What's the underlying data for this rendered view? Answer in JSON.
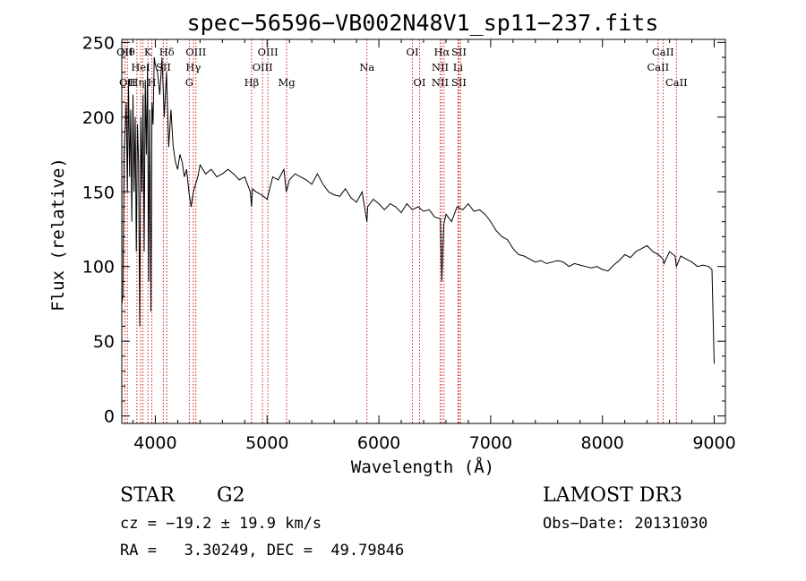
{
  "chart_data": {
    "type": "line",
    "title": "spec−56596−VB002N48V1_sp11−237.fits",
    "xlabel": "Wavelength (Å)",
    "ylabel": "Flux (relative)",
    "xlim": [
      3700,
      9100
    ],
    "ylim": [
      -5,
      252
    ],
    "xticks": [
      4000,
      5000,
      6000,
      7000,
      8000,
      9000
    ],
    "yticks": [
      0,
      50,
      100,
      150,
      200,
      250
    ],
    "spectrum": {
      "x": [
        3700,
        3710,
        3720,
        3730,
        3740,
        3750,
        3760,
        3770,
        3780,
        3790,
        3800,
        3810,
        3820,
        3830,
        3840,
        3850,
        3860,
        3870,
        3880,
        3890,
        3900,
        3910,
        3920,
        3930,
        3940,
        3950,
        3960,
        3970,
        3980,
        3990,
        4000,
        4020,
        4040,
        4060,
        4080,
        4100,
        4120,
        4140,
        4160,
        4180,
        4200,
        4220,
        4240,
        4260,
        4280,
        4300,
        4320,
        4340,
        4360,
        4380,
        4400,
        4450,
        4500,
        4550,
        4600,
        4650,
        4700,
        4750,
        4800,
        4850,
        4861,
        4870,
        4900,
        4950,
        5000,
        5050,
        5100,
        5150,
        5172,
        5200,
        5250,
        5300,
        5350,
        5400,
        5450,
        5500,
        5550,
        5600,
        5650,
        5700,
        5750,
        5800,
        5850,
        5893,
        5900,
        5950,
        6000,
        6050,
        6100,
        6150,
        6200,
        6250,
        6300,
        6350,
        6400,
        6450,
        6500,
        6550,
        6563,
        6580,
        6600,
        6650,
        6700,
        6750,
        6800,
        6850,
        6900,
        6950,
        7000,
        7050,
        7100,
        7150,
        7200,
        7250,
        7300,
        7350,
        7400,
        7450,
        7500,
        7550,
        7600,
        7650,
        7700,
        7750,
        7800,
        7850,
        7900,
        7950,
        8000,
        8050,
        8100,
        8150,
        8200,
        8250,
        8300,
        8350,
        8400,
        8450,
        8500,
        8542,
        8550,
        8600,
        8650,
        8662,
        8700,
        8750,
        8800,
        8850,
        8900,
        8950,
        8980,
        9000
      ],
      "y": [
        75,
        80,
        175,
        190,
        210,
        150,
        225,
        160,
        205,
        130,
        215,
        150,
        200,
        110,
        195,
        170,
        60,
        200,
        150,
        215,
        110,
        225,
        175,
        235,
        90,
        205,
        70,
        210,
        195,
        240,
        235,
        230,
        215,
        240,
        200,
        230,
        180,
        205,
        180,
        170,
        165,
        175,
        170,
        160,
        165,
        150,
        140,
        150,
        155,
        160,
        168,
        162,
        165,
        160,
        162,
        165,
        162,
        158,
        160,
        150,
        140,
        152,
        150,
        148,
        145,
        160,
        158,
        165,
        150,
        158,
        162,
        160,
        158,
        155,
        162,
        155,
        150,
        148,
        147,
        152,
        146,
        143,
        150,
        130,
        140,
        145,
        142,
        138,
        142,
        140,
        136,
        142,
        138,
        140,
        137,
        138,
        133,
        132,
        90,
        128,
        135,
        130,
        140,
        138,
        142,
        137,
        138,
        135,
        130,
        124,
        120,
        118,
        112,
        108,
        107,
        105,
        103,
        104,
        102,
        103,
        104,
        103,
        100,
        102,
        101,
        100,
        99,
        100,
        98,
        97,
        101,
        104,
        108,
        106,
        110,
        112,
        114,
        110,
        108,
        105,
        102,
        110,
        107,
        100,
        107,
        105,
        103,
        100,
        101,
        100,
        98,
        35
      ]
    },
    "lines": [
      {
        "wavelength": 3727,
        "top": "OII",
        "mid": "",
        "bottom": ""
      },
      {
        "wavelength": 3750,
        "top": "Hθ",
        "mid": "",
        "bottom": "OII"
      },
      {
        "wavelength": 3835,
        "top": "",
        "mid": "",
        "bottom": "Hη"
      },
      {
        "wavelength": 3869,
        "top": "",
        "mid": "HeI",
        "bottom": ""
      },
      {
        "wavelength": 3889,
        "top": "",
        "mid": "",
        "bottom": ""
      },
      {
        "wavelength": 3934,
        "top": "K",
        "mid": "",
        "bottom": ""
      },
      {
        "wavelength": 3969,
        "top": "",
        "mid": "",
        "bottom": "H"
      },
      {
        "wavelength": 4072,
        "top": "",
        "mid": "SII",
        "bottom": ""
      },
      {
        "wavelength": 4102,
        "top": "Hδ",
        "mid": "",
        "bottom": ""
      },
      {
        "wavelength": 4304,
        "top": "",
        "mid": "",
        "bottom": "G"
      },
      {
        "wavelength": 4340,
        "top": "",
        "mid": "Hγ",
        "bottom": ""
      },
      {
        "wavelength": 4363,
        "top": "OIII",
        "mid": "",
        "bottom": ""
      },
      {
        "wavelength": 4861,
        "top": "",
        "mid": "",
        "bottom": "Hβ"
      },
      {
        "wavelength": 4959,
        "top": "",
        "mid": "OIII",
        "bottom": ""
      },
      {
        "wavelength": 5007,
        "top": "OIII",
        "mid": "",
        "bottom": ""
      },
      {
        "wavelength": 5175,
        "top": "",
        "mid": "",
        "bottom": "Mg"
      },
      {
        "wavelength": 5893,
        "top": "",
        "mid": "Na",
        "bottom": ""
      },
      {
        "wavelength": 6300,
        "top": "OI",
        "mid": "",
        "bottom": ""
      },
      {
        "wavelength": 6364,
        "top": "",
        "mid": "",
        "bottom": "OI"
      },
      {
        "wavelength": 6548,
        "top": "",
        "mid": "NII",
        "bottom": "NII"
      },
      {
        "wavelength": 6563,
        "top": "Hα",
        "mid": "",
        "bottom": ""
      },
      {
        "wavelength": 6583,
        "top": "",
        "mid": "",
        "bottom": ""
      },
      {
        "wavelength": 6708,
        "top": "",
        "mid": "Li",
        "bottom": ""
      },
      {
        "wavelength": 6716,
        "top": "SII",
        "mid": "",
        "bottom": "SII"
      },
      {
        "wavelength": 6731,
        "top": "",
        "mid": "",
        "bottom": ""
      },
      {
        "wavelength": 8498,
        "top": "",
        "mid": "CaII",
        "bottom": ""
      },
      {
        "wavelength": 8542,
        "top": "CaII",
        "mid": "",
        "bottom": ""
      },
      {
        "wavelength": 8662,
        "top": "",
        "mid": "",
        "bottom": "CaII"
      }
    ],
    "grid": false
  },
  "info": {
    "object_class": "STAR",
    "subclass": "G2",
    "survey": "LAMOST DR3",
    "redshift_text": "cz = −19.2 ± 19.9 km/s",
    "obs_date_text": "Obs−Date: 20131030",
    "coords_text": "RA =   3.30249, DEC =  49.79846"
  },
  "colors": {
    "spectrum": "#000000",
    "line_marker": "#cc2222",
    "axis": "#000000"
  }
}
